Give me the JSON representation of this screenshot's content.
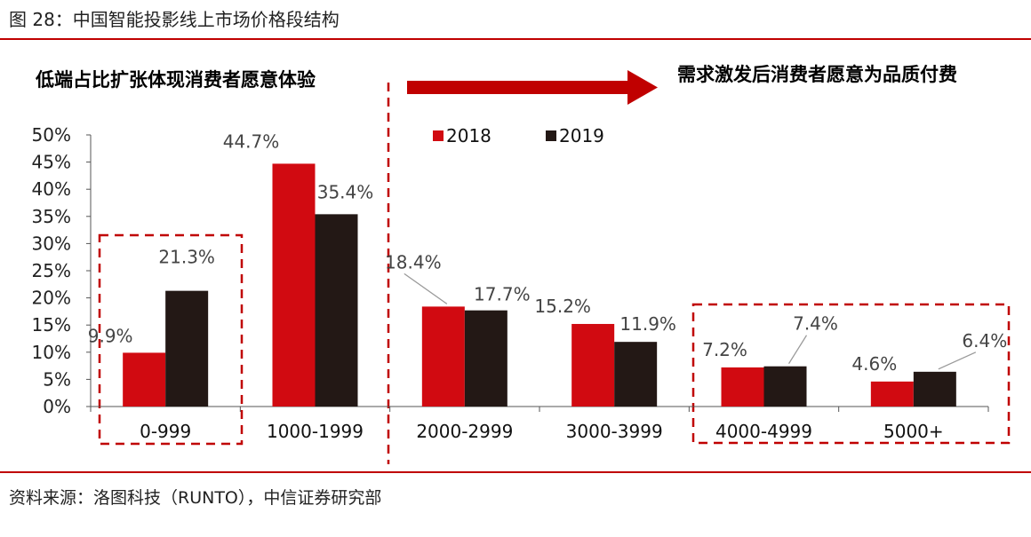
{
  "figure": {
    "title": "图 28：中国智能投影线上市场价格段结构",
    "source": "资料来源：洛图科技（RUNTO），中信证券研究部"
  },
  "annotations": {
    "left": "低端占比扩张体现消费者愿意体验",
    "right": "需求激发后消费者愿意为品质付费"
  },
  "colors": {
    "accent": "#c00000",
    "series_2018": "#d10a11",
    "series_2019": "#231815"
  },
  "chart_data": {
    "type": "bar",
    "categories": [
      "0-999",
      "1000-1999",
      "2000-2999",
      "3000-3999",
      "4000-4999",
      "5000+"
    ],
    "series": [
      {
        "name": "2018",
        "values": [
          9.9,
          44.7,
          18.4,
          15.2,
          7.2,
          4.6
        ],
        "labels": [
          "9.9%",
          "44.7%",
          "18.4%",
          "15.2%",
          "7.2%",
          "4.6%"
        ]
      },
      {
        "name": "2019",
        "values": [
          21.3,
          35.4,
          17.7,
          11.9,
          7.4,
          6.4
        ],
        "labels": [
          "21.3%",
          "35.4%",
          "17.7%",
          "11.9%",
          "7.4%",
          "6.4%"
        ]
      }
    ],
    "y_ticks": [
      "0%",
      "5%",
      "10%",
      "15%",
      "20%",
      "25%",
      "30%",
      "35%",
      "40%",
      "45%",
      "50%"
    ],
    "ylim": [
      0,
      50
    ],
    "unit": "%",
    "grid": false,
    "legend_position": "top"
  }
}
